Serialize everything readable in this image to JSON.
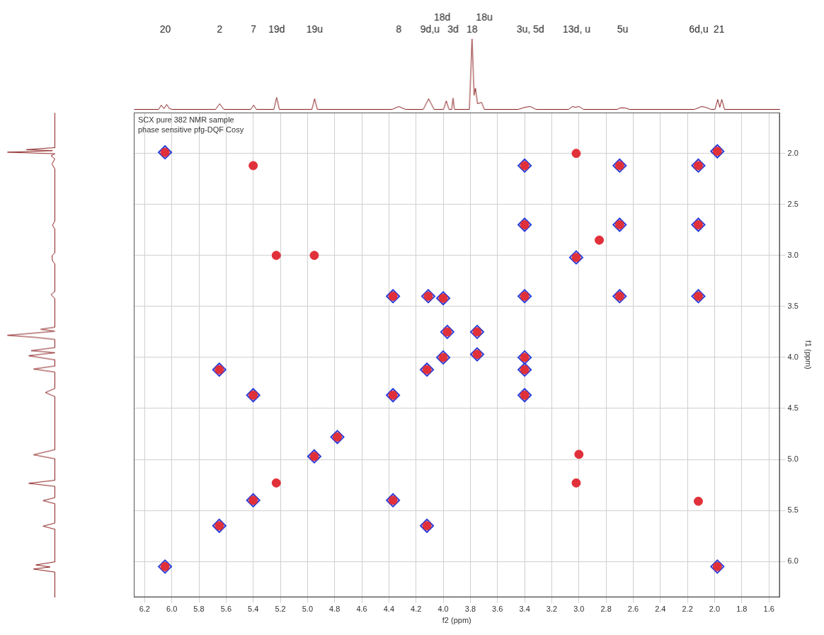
{
  "chart_data": [
    {
      "type": "scatter",
      "title": "SCX pure 382 NMR sample",
      "subtitle": "phase sensitive pfg-DQF Cosy",
      "x_label": "f2 (ppm)",
      "y_label": "f1 (ppm)",
      "xlim": [
        6.28,
        1.52
      ],
      "ylim": [
        1.6,
        6.35
      ],
      "xticks": [
        6.2,
        {
          "value": 6,
          "label": "6.0"
        },
        5.8,
        5.6,
        5.4,
        5.2,
        {
          "value": 5,
          "label": "5.0"
        },
        4.8,
        4.6,
        4.4,
        4.2,
        {
          "value": 4,
          "label": "4.0"
        },
        3.8,
        3.6,
        3.4,
        3.2,
        {
          "value": 3,
          "label": "3.0"
        },
        2.8,
        2.6,
        2.4,
        2.2,
        {
          "value": 2,
          "label": "2.0"
        },
        1.8,
        1.6
      ],
      "yticks": [
        {
          "value": 2,
          "label": "2.0"
        },
        2.5,
        {
          "value": 3,
          "label": "3.0"
        },
        3.5,
        {
          "value": 4,
          "label": "4.0"
        },
        4.5,
        {
          "value": 5,
          "label": "5.0"
        },
        5.5,
        {
          "value": 6,
          "label": "6.0"
        }
      ],
      "grid": true,
      "series": [
        {
          "color": "#2a3bd6",
          "marker": "diamond",
          "points": [
            [
              6.05,
              6.05
            ],
            [
              6.05,
              1.99
            ],
            [
              1.98,
              6.05
            ],
            [
              5.65,
              5.65
            ],
            [
              5.65,
              4.12
            ],
            [
              4.12,
              5.65
            ],
            [
              5.4,
              5.4
            ],
            [
              5.4,
              4.37
            ],
            [
              4.37,
              5.4
            ],
            [
              4.95,
              4.97
            ],
            [
              4.78,
              4.78
            ],
            [
              4.37,
              4.37
            ],
            [
              4.37,
              3.4
            ],
            [
              3.4,
              4.37
            ],
            [
              4.12,
              4.12
            ],
            [
              4.11,
              3.4
            ],
            [
              3.4,
              4.12
            ],
            [
              4.0,
              4.0
            ],
            [
              4.0,
              3.42
            ],
            [
              3.4,
              4.0
            ],
            [
              3.97,
              3.75
            ],
            [
              3.75,
              3.97
            ],
            [
              3.75,
              3.75
            ],
            [
              3.4,
              3.4
            ],
            [
              3.4,
              2.12
            ],
            [
              2.12,
              3.4
            ],
            [
              3.4,
              2.7
            ],
            [
              2.7,
              3.4
            ],
            [
              3.02,
              3.02
            ],
            [
              2.7,
              2.7
            ],
            [
              2.7,
              2.12
            ],
            [
              2.12,
              2.7
            ],
            [
              2.12,
              2.12
            ],
            [
              1.98,
              1.98
            ]
          ]
        },
        {
          "color": "#e0303a",
          "marker": "circle",
          "points": [
            [
              6.05,
              6.05
            ],
            [
              6.05,
              1.99
            ],
            [
              1.98,
              6.05
            ],
            [
              5.65,
              5.65
            ],
            [
              5.65,
              4.12
            ],
            [
              4.12,
              5.65
            ],
            [
              5.4,
              5.4
            ],
            [
              5.4,
              4.37
            ],
            [
              4.37,
              5.4
            ],
            [
              5.4,
              2.12
            ],
            [
              2.12,
              5.41
            ],
            [
              5.23,
              5.23
            ],
            [
              5.23,
              3.0
            ],
            [
              3.02,
              5.23
            ],
            [
              4.95,
              4.97
            ],
            [
              4.95,
              3.0
            ],
            [
              3.0,
              4.95
            ],
            [
              4.78,
              4.78
            ],
            [
              4.37,
              4.37
            ],
            [
              4.37,
              3.4
            ],
            [
              3.4,
              4.37
            ],
            [
              4.12,
              4.12
            ],
            [
              4.11,
              3.4
            ],
            [
              3.4,
              4.12
            ],
            [
              4.0,
              4.0
            ],
            [
              4.0,
              3.42
            ],
            [
              3.4,
              4.0
            ],
            [
              3.97,
              3.75
            ],
            [
              3.75,
              3.97
            ],
            [
              3.75,
              3.75
            ],
            [
              3.4,
              3.4
            ],
            [
              3.4,
              2.12
            ],
            [
              2.12,
              3.4
            ],
            [
              3.4,
              2.7
            ],
            [
              2.7,
              3.4
            ],
            [
              3.02,
              3.02
            ],
            [
              3.02,
              2.0
            ],
            [
              2.85,
              2.85
            ],
            [
              2.7,
              2.7
            ],
            [
              2.7,
              2.12
            ],
            [
              2.12,
              2.7
            ],
            [
              2.12,
              2.12
            ],
            [
              1.98,
              1.98
            ]
          ]
        }
      ]
    },
    {
      "type": "line",
      "color": "#8b2020",
      "points": [
        [
          6.3,
          0
        ],
        [
          6.1,
          0
        ],
        [
          6.08,
          6
        ],
        [
          6.06,
          1
        ],
        [
          6.04,
          7
        ],
        [
          6.02,
          1
        ],
        [
          6.0,
          0
        ],
        [
          5.68,
          0
        ],
        [
          5.65,
          8
        ],
        [
          5.62,
          0
        ],
        [
          5.42,
          0
        ],
        [
          5.4,
          6
        ],
        [
          5.38,
          0
        ],
        [
          5.25,
          0
        ],
        [
          5.23,
          17
        ],
        [
          5.21,
          0
        ],
        [
          4.97,
          0
        ],
        [
          4.95,
          15
        ],
        [
          4.93,
          0
        ],
        [
          4.38,
          0
        ],
        [
          4.33,
          4
        ],
        [
          4.28,
          0
        ],
        [
          4.15,
          0
        ],
        [
          4.11,
          15
        ],
        [
          4.07,
          0
        ],
        [
          4.0,
          0
        ],
        [
          3.98,
          12
        ],
        [
          3.96,
          0
        ],
        [
          3.94,
          0
        ],
        [
          3.93,
          16
        ],
        [
          3.92,
          0
        ],
        [
          3.81,
          0
        ],
        [
          3.79,
          100
        ],
        [
          3.775,
          20
        ],
        [
          3.765,
          30
        ],
        [
          3.75,
          8
        ],
        [
          3.72,
          10
        ],
        [
          3.7,
          0
        ],
        [
          3.45,
          0
        ],
        [
          3.4,
          3
        ],
        [
          3.36,
          4
        ],
        [
          3.32,
          0
        ],
        [
          3.08,
          0
        ],
        [
          3.05,
          4
        ],
        [
          3.03,
          3
        ],
        [
          3.0,
          4
        ],
        [
          2.97,
          0
        ],
        [
          2.72,
          0
        ],
        [
          2.7,
          2
        ],
        [
          2.66,
          2
        ],
        [
          2.63,
          0
        ],
        [
          2.15,
          0
        ],
        [
          2.1,
          4
        ],
        [
          2.07,
          3
        ],
        [
          2.03,
          0
        ],
        [
          2.0,
          0
        ],
        [
          1.98,
          14
        ],
        [
          1.965,
          3
        ],
        [
          1.95,
          14
        ],
        [
          1.93,
          0
        ],
        [
          1.52,
          0
        ]
      ],
      "annotations": [
        {
          "x": 6.05,
          "text": "20"
        },
        {
          "x": 5.65,
          "text": "2"
        },
        {
          "x": 5.4,
          "text": "7"
        },
        {
          "x": 5.23,
          "text": "19d"
        },
        {
          "x": 4.95,
          "text": "19u"
        },
        {
          "x": 4.33,
          "text": "8"
        },
        {
          "x": 4.1,
          "text": "9d,u"
        },
        {
          "x": 4.01,
          "text": "18d"
        },
        {
          "x": 3.93,
          "text": "3d"
        },
        {
          "x": 3.79,
          "text": "18"
        },
        {
          "x": 3.7,
          "text": "18u"
        },
        {
          "x": 3.36,
          "text": "3u, 5d"
        },
        {
          "x": 3.02,
          "text": "13d, u"
        },
        {
          "x": 2.68,
          "text": "5u"
        },
        {
          "x": 2.12,
          "text": "6d,u"
        },
        {
          "x": 1.97,
          "text": "21"
        }
      ]
    },
    {
      "type": "line",
      "color": "#8b2020",
      "points": [
        [
          0,
          1.6
        ],
        [
          0,
          1.94
        ],
        [
          60,
          1.96
        ],
        [
          5,
          1.97
        ],
        [
          100,
          1.985
        ],
        [
          0,
          2.0
        ],
        [
          8,
          2.02
        ],
        [
          0,
          2.05
        ],
        [
          6,
          2.1
        ],
        [
          0,
          2.15
        ],
        [
          0,
          2.66
        ],
        [
          5,
          2.7
        ],
        [
          0,
          2.74
        ],
        [
          0,
          2.97
        ],
        [
          6,
          3.0
        ],
        [
          5,
          3.05
        ],
        [
          0,
          3.08
        ],
        [
          0,
          3.35
        ],
        [
          8,
          3.38
        ],
        [
          0,
          3.42
        ],
        [
          0,
          3.7
        ],
        [
          30,
          3.72
        ],
        [
          0,
          3.74
        ],
        [
          100,
          3.78
        ],
        [
          40,
          3.8
        ],
        [
          0,
          3.82
        ],
        [
          0,
          3.9
        ],
        [
          50,
          3.93
        ],
        [
          0,
          3.95
        ],
        [
          55,
          3.98
        ],
        [
          0,
          4.02
        ],
        [
          0,
          4.08
        ],
        [
          45,
          4.11
        ],
        [
          0,
          4.14
        ],
        [
          0,
          4.3
        ],
        [
          20,
          4.34
        ],
        [
          0,
          4.38
        ],
        [
          0,
          4.9
        ],
        [
          45,
          4.95
        ],
        [
          0,
          4.99
        ],
        [
          0,
          5.2
        ],
        [
          55,
          5.23
        ],
        [
          0,
          5.26
        ],
        [
          0,
          5.37
        ],
        [
          25,
          5.4
        ],
        [
          0,
          5.43
        ],
        [
          0,
          5.62
        ],
        [
          25,
          5.65
        ],
        [
          0,
          5.68
        ],
        [
          0,
          6.0
        ],
        [
          40,
          6.03
        ],
        [
          10,
          6.05
        ],
        [
          45,
          6.07
        ],
        [
          0,
          6.1
        ],
        [
          0,
          6.35
        ]
      ]
    }
  ]
}
